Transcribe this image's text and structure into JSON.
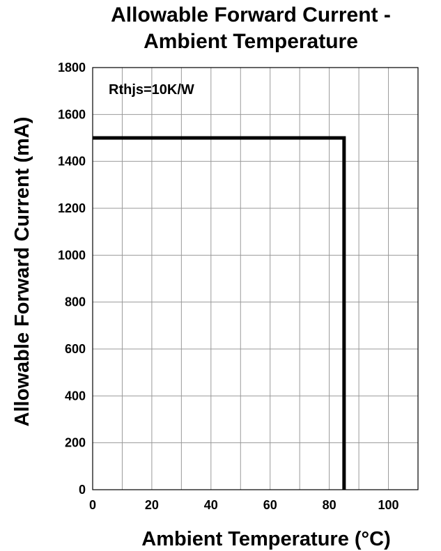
{
  "chart_data": {
    "type": "line",
    "title_lines": [
      "Allowable Forward Current -",
      "Ambient Temperature"
    ],
    "xlabel": "Ambient Temperature (°C)",
    "ylabel": "Allowable Forward Current (mA)",
    "xlim": [
      0,
      110
    ],
    "ylim": [
      0,
      1800
    ],
    "xticks": [
      0,
      20,
      40,
      60,
      80,
      100
    ],
    "yticks": [
      0,
      200,
      400,
      600,
      800,
      1000,
      1200,
      1400,
      1600,
      1800
    ],
    "x_grid_step": 10,
    "y_grid_step": 200,
    "grid": true,
    "annotation": "Rthjs=10K/W",
    "series": [
      {
        "x": [
          0,
          85,
          85
        ],
        "y": [
          1500,
          1500,
          0
        ]
      }
    ]
  }
}
